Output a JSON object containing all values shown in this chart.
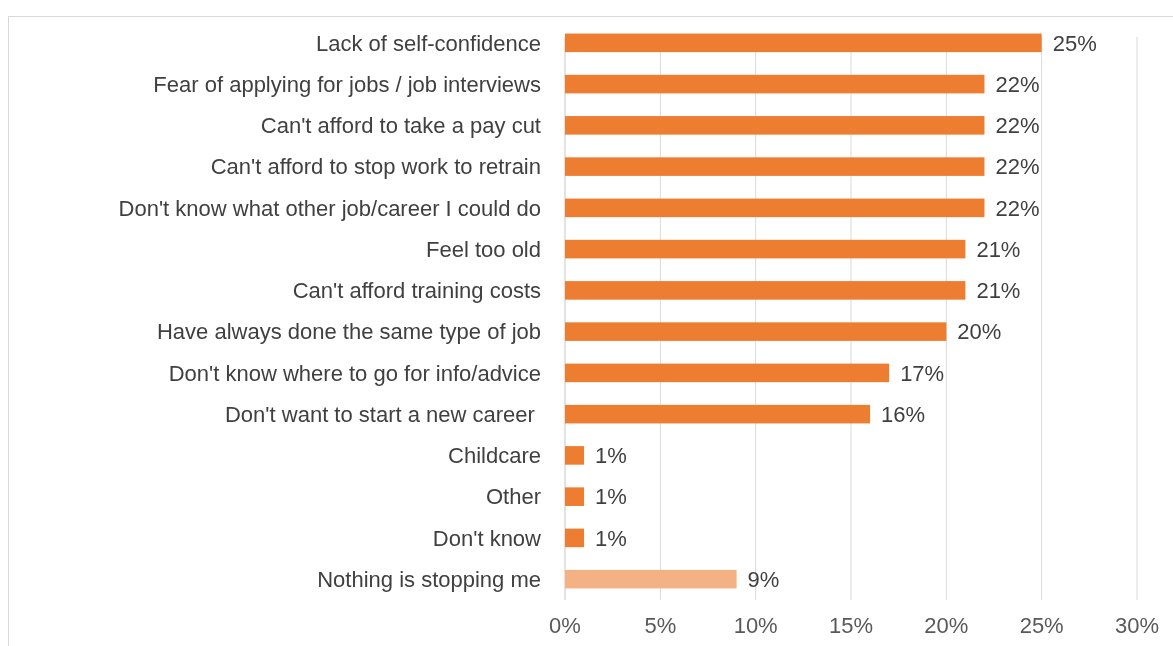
{
  "chart_data": {
    "type": "bar",
    "orientation": "horizontal",
    "categories": [
      "Lack of self-confidence",
      "Fear of applying for jobs / job interviews",
      "Can't afford to take a pay cut",
      "Can't afford to stop work to retrain",
      "Don't know what other job/career I could do",
      "Feel too old",
      "Can't afford training costs",
      "Have always done the same type of job",
      "Don't know where to go for info/advice",
      "Don't want to start a new career ",
      "Childcare",
      "Other",
      "Don't know",
      "Nothing is stopping me"
    ],
    "values": [
      25,
      22,
      22,
      22,
      22,
      21,
      21,
      20,
      17,
      16,
      1,
      1,
      1,
      9
    ],
    "colors": [
      "#ed7d31",
      "#ed7d31",
      "#ed7d31",
      "#ed7d31",
      "#ed7d31",
      "#ed7d31",
      "#ed7d31",
      "#ed7d31",
      "#ed7d31",
      "#ed7d31",
      "#ed7d31",
      "#ed7d31",
      "#ed7d31",
      "#f4b183"
    ],
    "value_labels": [
      "25%",
      "22%",
      "22%",
      "22%",
      "22%",
      "21%",
      "21%",
      "20%",
      "17%",
      "16%",
      "1%",
      "1%",
      "1%",
      "9%"
    ],
    "xlim": [
      0,
      30
    ],
    "xticks": [
      {
        "value": 0,
        "label": "0%"
      },
      {
        "value": 5,
        "label": "5%"
      },
      {
        "value": 10,
        "label": "10%"
      },
      {
        "value": 15,
        "label": "15%"
      },
      {
        "value": 20,
        "label": "20%"
      },
      {
        "value": 25,
        "label": "25%"
      },
      {
        "value": 30,
        "label": "30%"
      }
    ],
    "grid": "x"
  }
}
